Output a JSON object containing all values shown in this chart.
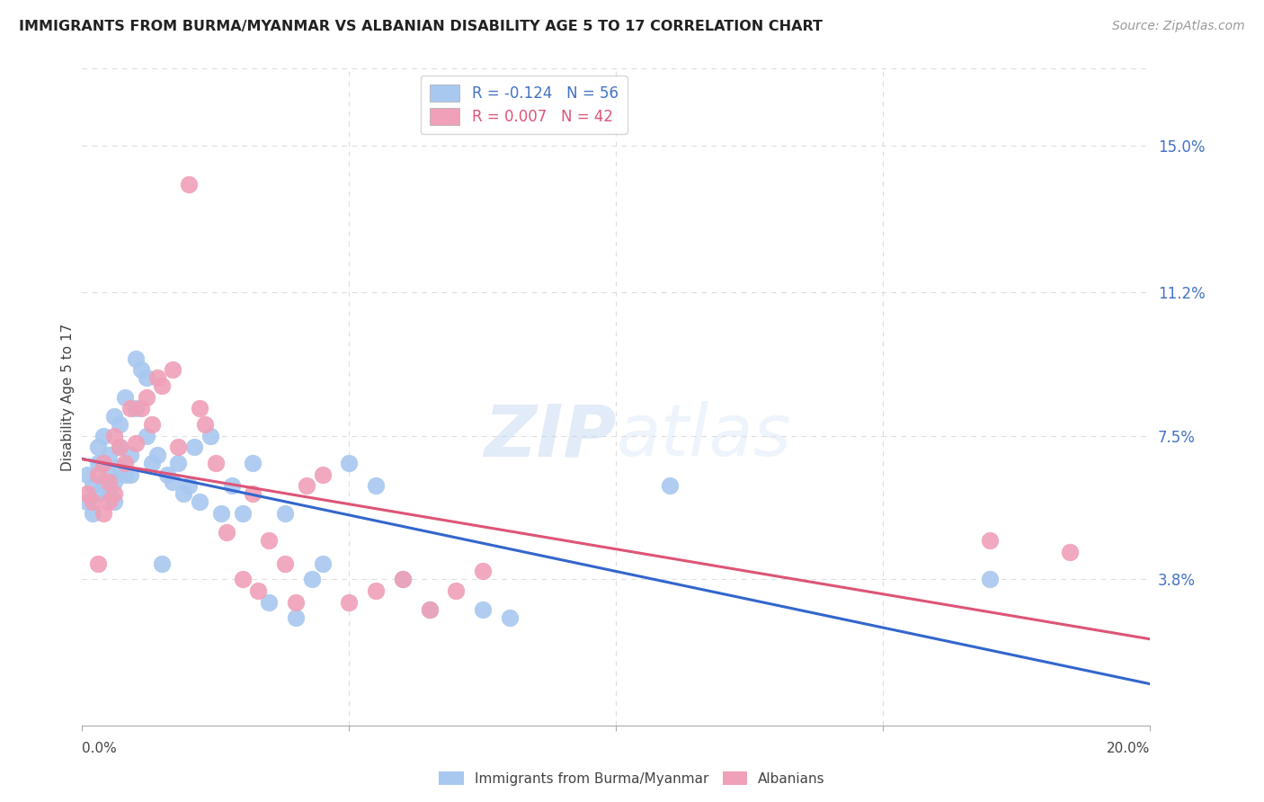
{
  "title": "IMMIGRANTS FROM BURMA/MYANMAR VS ALBANIAN DISABILITY AGE 5 TO 17 CORRELATION CHART",
  "source": "Source: ZipAtlas.com",
  "ylabel": "Disability Age 5 to 17",
  "right_yticks": [
    "15.0%",
    "11.2%",
    "7.5%",
    "3.8%"
  ],
  "right_ytick_vals": [
    0.15,
    0.112,
    0.075,
    0.038
  ],
  "xlim": [
    0.0,
    0.2
  ],
  "ylim": [
    0.0,
    0.17
  ],
  "series1": {
    "label": "Immigrants from Burma/Myanmar",
    "R": "-0.124",
    "N": "56",
    "color": "#a8c8f0",
    "line_color": "#3366cc",
    "x": [
      0.001,
      0.001,
      0.002,
      0.002,
      0.003,
      0.003,
      0.003,
      0.004,
      0.004,
      0.004,
      0.005,
      0.005,
      0.005,
      0.006,
      0.006,
      0.006,
      0.007,
      0.007,
      0.007,
      0.008,
      0.008,
      0.009,
      0.009,
      0.01,
      0.01,
      0.011,
      0.012,
      0.012,
      0.013,
      0.014,
      0.015,
      0.016,
      0.017,
      0.018,
      0.019,
      0.02,
      0.021,
      0.022,
      0.024,
      0.026,
      0.028,
      0.03,
      0.032,
      0.035,
      0.038,
      0.04,
      0.043,
      0.045,
      0.05,
      0.055,
      0.06,
      0.065,
      0.075,
      0.08,
      0.11,
      0.17
    ],
    "y": [
      0.058,
      0.065,
      0.062,
      0.055,
      0.068,
      0.072,
      0.06,
      0.063,
      0.068,
      0.075,
      0.06,
      0.065,
      0.07,
      0.058,
      0.063,
      0.08,
      0.067,
      0.072,
      0.078,
      0.065,
      0.085,
      0.07,
      0.065,
      0.095,
      0.082,
      0.092,
      0.075,
      0.09,
      0.068,
      0.07,
      0.042,
      0.065,
      0.063,
      0.068,
      0.06,
      0.062,
      0.072,
      0.058,
      0.075,
      0.055,
      0.062,
      0.055,
      0.068,
      0.032,
      0.055,
      0.028,
      0.038,
      0.042,
      0.068,
      0.062,
      0.038,
      0.03,
      0.03,
      0.028,
      0.062,
      0.038
    ]
  },
  "series2": {
    "label": "Albanians",
    "R": "0.007",
    "N": "42",
    "color": "#f0a0b8",
    "line_color": "#dd5577",
    "x": [
      0.001,
      0.002,
      0.003,
      0.003,
      0.004,
      0.004,
      0.005,
      0.005,
      0.006,
      0.006,
      0.007,
      0.008,
      0.009,
      0.01,
      0.011,
      0.012,
      0.013,
      0.014,
      0.015,
      0.017,
      0.018,
      0.02,
      0.022,
      0.023,
      0.025,
      0.027,
      0.03,
      0.032,
      0.033,
      0.035,
      0.038,
      0.04,
      0.042,
      0.045,
      0.05,
      0.055,
      0.06,
      0.065,
      0.07,
      0.075,
      0.17,
      0.185
    ],
    "y": [
      0.06,
      0.058,
      0.042,
      0.065,
      0.055,
      0.068,
      0.058,
      0.063,
      0.06,
      0.075,
      0.072,
      0.068,
      0.082,
      0.073,
      0.082,
      0.085,
      0.078,
      0.09,
      0.088,
      0.092,
      0.072,
      0.14,
      0.082,
      0.078,
      0.068,
      0.05,
      0.038,
      0.06,
      0.035,
      0.048,
      0.042,
      0.032,
      0.062,
      0.065,
      0.032,
      0.035,
      0.038,
      0.03,
      0.035,
      0.04,
      0.048,
      0.045
    ]
  },
  "watermark_zip": "ZIP",
  "watermark_atlas": "atlas",
  "background_color": "#ffffff",
  "grid_color": "#dddddd"
}
